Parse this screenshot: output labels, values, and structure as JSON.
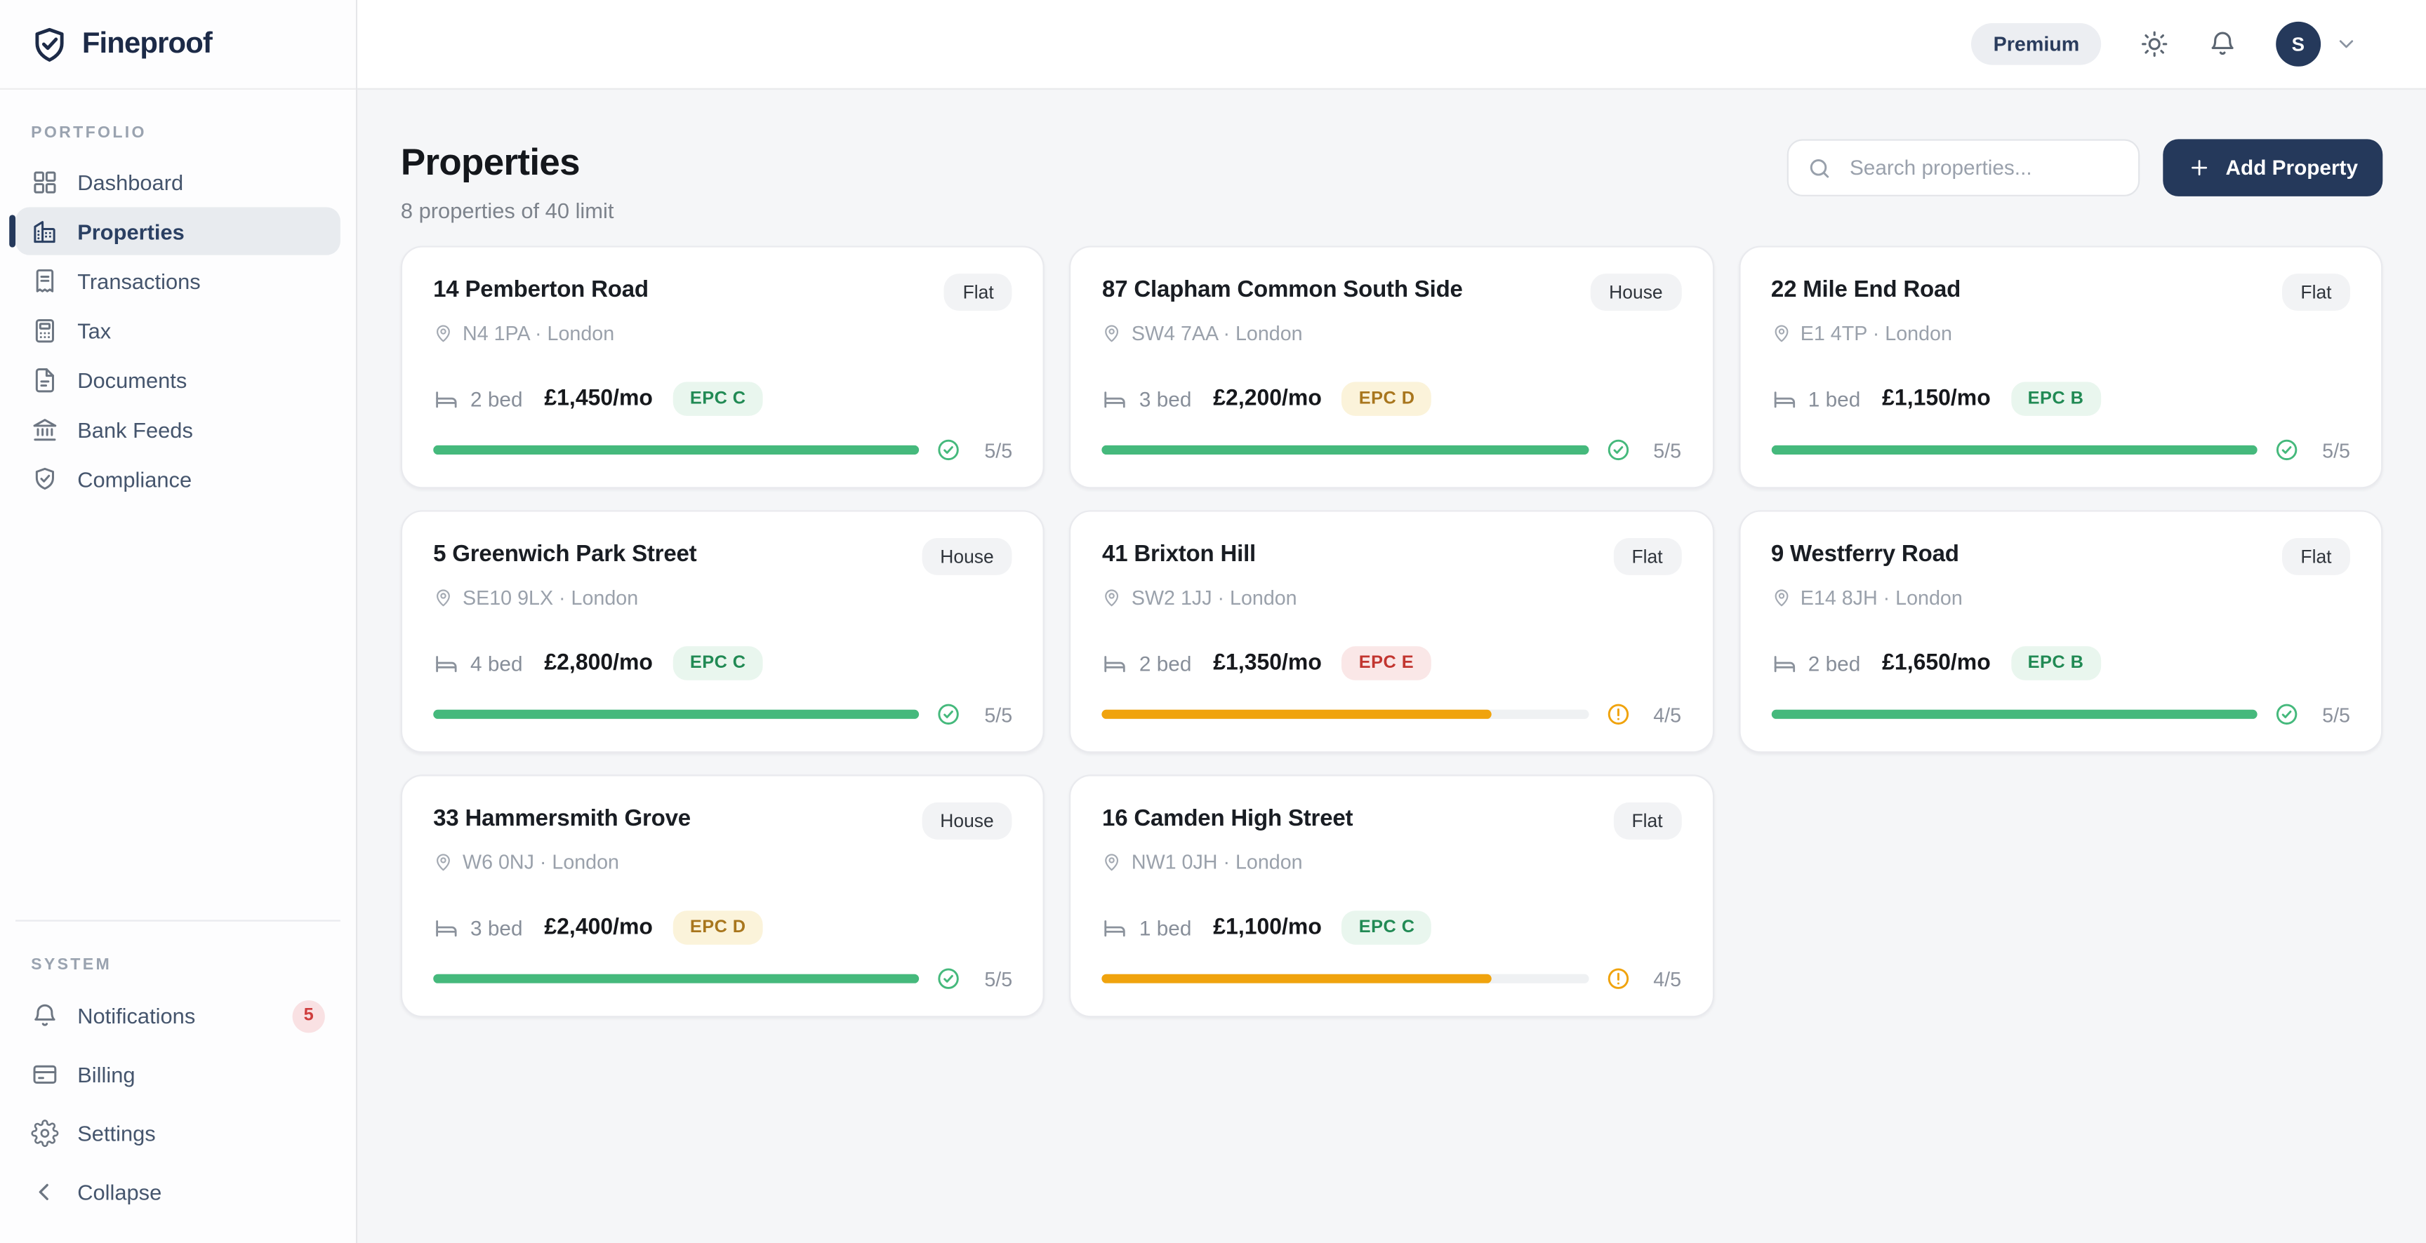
{
  "brand": {
    "name": "Fineproof"
  },
  "topbar": {
    "plan_badge": "Premium",
    "avatar_initial": "S"
  },
  "sidebar": {
    "sections": [
      {
        "label": "PORTFOLIO",
        "items": [
          {
            "label": "Dashboard",
            "icon": "grid",
            "active": false
          },
          {
            "label": "Properties",
            "icon": "building",
            "active": true
          },
          {
            "label": "Transactions",
            "icon": "receipt",
            "active": false
          },
          {
            "label": "Tax",
            "icon": "calculator",
            "active": false
          },
          {
            "label": "Documents",
            "icon": "document",
            "active": false
          },
          {
            "label": "Bank Feeds",
            "icon": "bank",
            "active": false
          },
          {
            "label": "Compliance",
            "icon": "shield-check",
            "active": false
          }
        ]
      },
      {
        "label": "SYSTEM",
        "items": [
          {
            "label": "Notifications",
            "icon": "bell",
            "active": false,
            "badge": "5"
          },
          {
            "label": "Billing",
            "icon": "credit-card",
            "active": false
          },
          {
            "label": "Settings",
            "icon": "gear",
            "active": false
          }
        ]
      }
    ],
    "collapse_label": "Collapse"
  },
  "page": {
    "title": "Properties",
    "subtitle": "8 properties of 40 limit",
    "search_placeholder": "Search properties...",
    "add_property_label": "Add Property"
  },
  "properties": [
    {
      "name": "14 Pemberton Road",
      "type": "Flat",
      "location": "N4 1PA · London",
      "beds": "2 bed",
      "rent": "£1,450/mo",
      "epc": {
        "label": "EPC C",
        "tone": "green"
      },
      "score": "5/5",
      "progress_pct": 100,
      "status": "ok"
    },
    {
      "name": "87 Clapham Common South Side",
      "type": "House",
      "location": "SW4 7AA · London",
      "beds": "3 bed",
      "rent": "£2,200/mo",
      "epc": {
        "label": "EPC D",
        "tone": "amber"
      },
      "score": "5/5",
      "progress_pct": 100,
      "status": "ok"
    },
    {
      "name": "22 Mile End Road",
      "type": "Flat",
      "location": "E1 4TP · London",
      "beds": "1 bed",
      "rent": "£1,150/mo",
      "epc": {
        "label": "EPC B",
        "tone": "green"
      },
      "score": "5/5",
      "progress_pct": 100,
      "status": "ok"
    },
    {
      "name": "5 Greenwich Park Street",
      "type": "House",
      "location": "SE10 9LX · London",
      "beds": "4 bed",
      "rent": "£2,800/mo",
      "epc": {
        "label": "EPC C",
        "tone": "green"
      },
      "score": "5/5",
      "progress_pct": 100,
      "status": "ok"
    },
    {
      "name": "41 Brixton Hill",
      "type": "Flat",
      "location": "SW2 1JJ · London",
      "beds": "2 bed",
      "rent": "£1,350/mo",
      "epc": {
        "label": "EPC E",
        "tone": "red"
      },
      "score": "4/5",
      "progress_pct": 80,
      "status": "warning"
    },
    {
      "name": "9 Westferry Road",
      "type": "Flat",
      "location": "E14 8JH · London",
      "beds": "2 bed",
      "rent": "£1,650/mo",
      "epc": {
        "label": "EPC B",
        "tone": "green"
      },
      "score": "5/5",
      "progress_pct": 100,
      "status": "ok"
    },
    {
      "name": "33 Hammersmith Grove",
      "type": "House",
      "location": "W6 0NJ · London",
      "beds": "3 bed",
      "rent": "£2,400/mo",
      "epc": {
        "label": "EPC D",
        "tone": "amber"
      },
      "score": "5/5",
      "progress_pct": 100,
      "status": "ok"
    },
    {
      "name": "16 Camden High Street",
      "type": "Flat",
      "location": "NW1 0JH · London",
      "beds": "1 bed",
      "rent": "£1,100/mo",
      "epc": {
        "label": "EPC C",
        "tone": "green"
      },
      "score": "4/5",
      "progress_pct": 80,
      "status": "warning"
    }
  ],
  "colors": {
    "accent_navy": "#25395b",
    "green": "#45b97c",
    "amber": "#f0a30d",
    "red": "#c5332c"
  }
}
